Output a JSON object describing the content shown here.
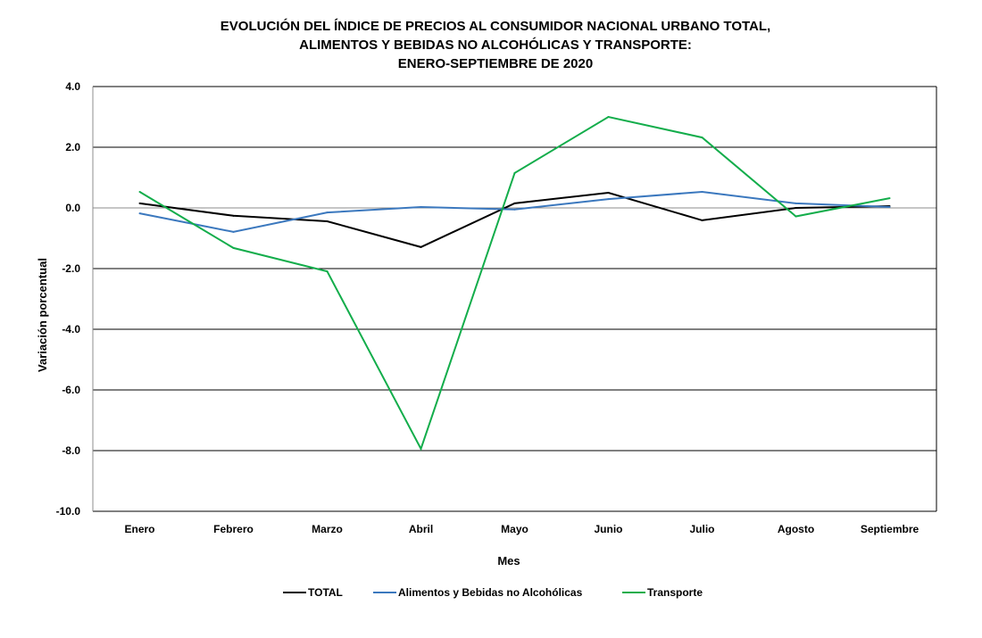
{
  "chart_data": {
    "type": "line",
    "title": [
      "EVOLUCIÓN  DEL ÍNDICE  DE PRECIOS  AL CONSUMIDOR  NACIONAL  URBANO  TOTAL,",
      "ALIMENTOS  Y BEBIDAS  NO ALCOHÓLICAS  Y TRANSPORTE:",
      "ENERO-SEPTIEMBRE  DE 2020"
    ],
    "xlabel": "Mes",
    "ylabel": "Variación  porcentual",
    "categories": [
      "Enero",
      "Febrero",
      "Marzo",
      "Abril",
      "Mayo",
      "Junio",
      "Julio",
      "Agosto",
      "Septiembre"
    ],
    "ylim": [
      -10.0,
      4.0
    ],
    "yticks": [
      "4.0",
      "2.0",
      "0.0",
      "-2.0",
      "-4.0",
      "-6.0",
      "-8.0",
      "-10.0"
    ],
    "ytick_values": [
      4,
      2,
      0,
      -2,
      -4,
      -6,
      -8,
      -10
    ],
    "grid": true,
    "legend_position": "bottom",
    "series": [
      {
        "name": "TOTAL",
        "color": "#000000",
        "values": [
          0.15,
          -0.26,
          -0.44,
          -1.29,
          0.15,
          0.5,
          -0.41,
          0.0,
          0.06
        ]
      },
      {
        "name": "Alimentos y Bebidas no Alcohólicas",
        "color": "#3B78BE",
        "values": [
          -0.18,
          -0.79,
          -0.15,
          0.03,
          -0.05,
          0.29,
          0.53,
          0.15,
          0.03
        ]
      },
      {
        "name": "Transporte",
        "color": "#13AD4B",
        "values": [
          0.53,
          -1.32,
          -2.09,
          -7.94,
          1.15,
          3.0,
          2.32,
          -0.28,
          0.32
        ]
      }
    ]
  }
}
